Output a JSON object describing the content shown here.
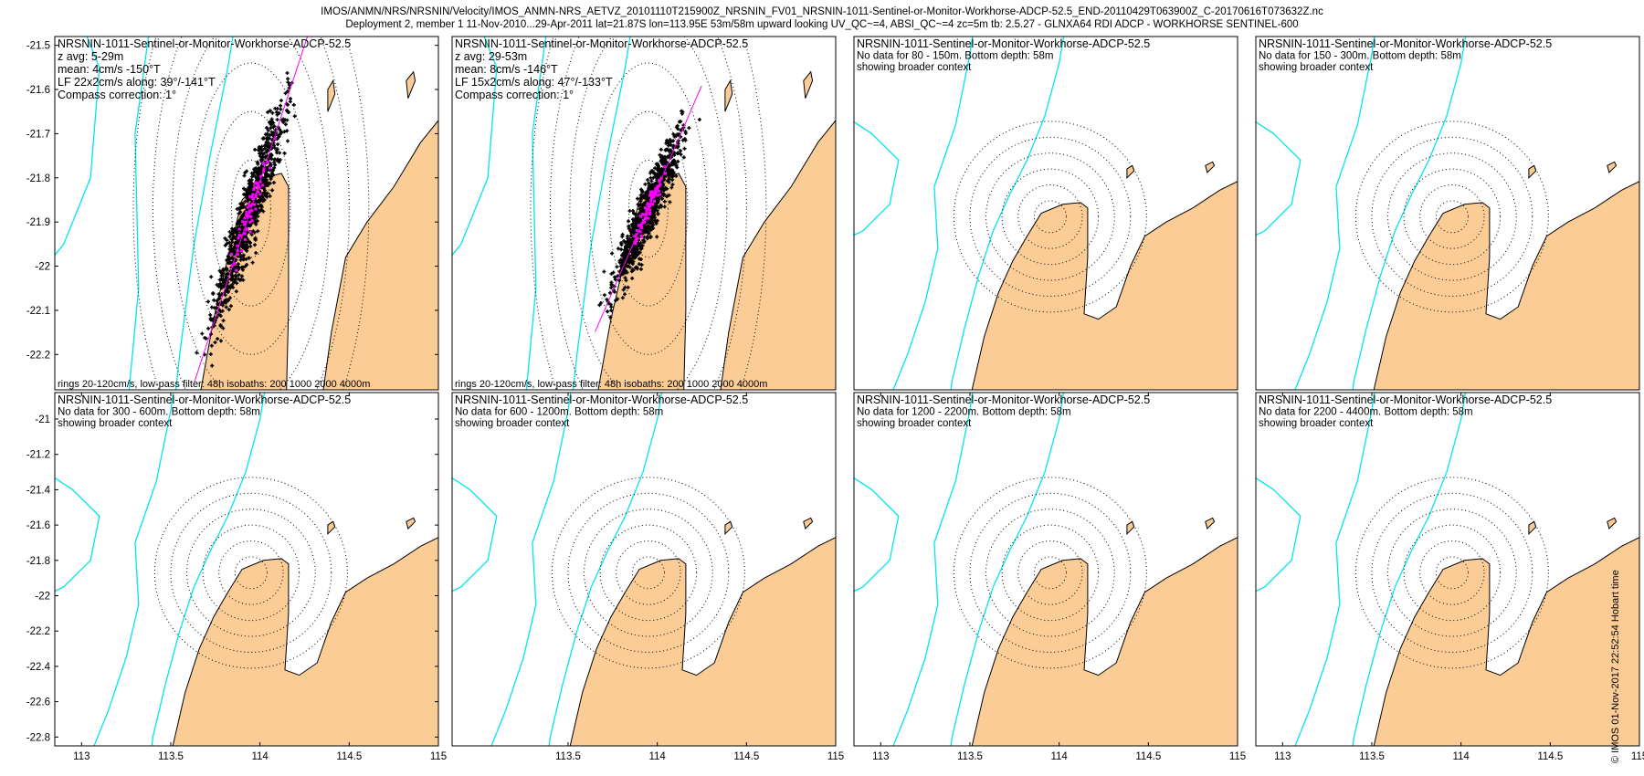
{
  "header": {
    "line1": "IMOS/ANMN/NRS/NRSNIN/Velocity/IMOS_ANMN-NRS_AETVZ_20101110T215900Z_NRSNIN_FV01_NRSNIN-1011-Sentinel-or-Monitor-Workhorse-ADCP-52.5_END-20110429T063900Z_C-20170616T073632Z.nc",
    "line2": "Deployment 2, member 1 11-Nov-2010...29-Apr-2011 lat=21.87S lon=113.95E 53m/58m upward looking UV_QC~=4, ABSI_QC~=4 zc=5m tb: 2.5.27 - GLNXA64 RDI ADCP - WORKHORSE SENTINEL-600"
  },
  "side_credit": "© IMOS 01-Nov-2017 22:52:54 Hobart time",
  "colors": {
    "land": "#fccc96",
    "isobath": "#00e5ee",
    "scatter": "#000000",
    "lowpass": "#ff00ff",
    "fitline": "#ff00ff"
  },
  "chart_data": [
    {
      "type": "scatter",
      "title": "NRSNIN-1011-Sentinel-or-Monitor-Workhorse-ADCP-52.5",
      "lines": [
        "z avg: 5-29m",
        "mean: 4cm/s -150°T",
        "LF 22x2cm/s along: 39°/-141°T",
        "Compass correction: 1°"
      ],
      "footer": "rings 20-120cm/s, low-pass filter: 48h isobaths: 200 1000 2000 4000m",
      "xlim": [
        112.85,
        115.0
      ],
      "ylim": [
        -22.28,
        -21.48
      ],
      "yticks": [
        -21.5,
        -21.6,
        -21.7,
        -21.8,
        -21.9,
        -22,
        -22.1,
        -22.2
      ],
      "xticks": [],
      "has_data": true,
      "mean_deg": -150,
      "along_deg": 39,
      "major_half": 0.42,
      "minor_half": 0.04
    },
    {
      "type": "scatter",
      "title": "NRSNIN-1011-Sentinel-or-Monitor-Workhorse-ADCP-52.5",
      "lines": [
        "z avg: 29-53m",
        "mean: 8cm/s -146°T",
        "LF 15x2cm/s along: 47°/-133°T",
        "Compass correction: 1°"
      ],
      "footer": "rings 20-120cm/s, low-pass filter: 48h isobaths: 200 1000 2000 4000m",
      "xlim": [
        112.85,
        115.0
      ],
      "ylim": [
        -22.28,
        -21.48
      ],
      "yticks": [],
      "xticks": [],
      "has_data": true,
      "mean_deg": -146,
      "along_deg": 47,
      "major_half": 0.34,
      "minor_half": 0.035
    },
    {
      "type": "scatter",
      "title": "NRSNIN-1011-Sentinel-or-Monitor-Workhorse-ADCP-52.5",
      "lines": [
        "No data for 80 - 150m. Bottom depth: 58m",
        "showing broader context"
      ],
      "footer": "",
      "xlim": [
        112.85,
        115.0
      ],
      "ylim": [
        -22.85,
        -20.85
      ],
      "yticks": [],
      "xticks": [],
      "has_data": false
    },
    {
      "type": "scatter",
      "title": "NRSNIN-1011-Sentinel-or-Monitor-Workhorse-ADCP-52.5",
      "lines": [
        "No data for 150 - 300m. Bottom depth: 58m",
        "showing broader context"
      ],
      "footer": "",
      "xlim": [
        112.85,
        115.0
      ],
      "ylim": [
        -22.85,
        -20.85
      ],
      "yticks": [],
      "xticks": [],
      "has_data": false
    },
    {
      "type": "scatter",
      "title": "NRSNIN-1011-Sentinel-or-Monitor-Workhorse-ADCP-52.5",
      "lines": [
        "No data for 300 - 600m. Bottom depth: 58m",
        "showing broader context"
      ],
      "footer": "",
      "xlim": [
        112.85,
        115.0
      ],
      "ylim": [
        -22.85,
        -20.85
      ],
      "yticks": [
        -21,
        -21.2,
        -21.4,
        -21.6,
        -21.8,
        -22,
        -22.2,
        -22.4,
        -22.6,
        -22.8
      ],
      "xticks": [
        113,
        113.5,
        114,
        114.5,
        115
      ],
      "has_data": false
    },
    {
      "type": "scatter",
      "title": "NRSNIN-1011-Sentinel-or-Monitor-Workhorse-ADCP-52.5",
      "lines": [
        "No data for 600 - 1200m. Bottom depth: 58m",
        "showing broader context"
      ],
      "footer": "",
      "xlim": [
        112.85,
        115.0
      ],
      "ylim": [
        -22.85,
        -20.85
      ],
      "yticks": [],
      "xticks": [
        113.5,
        114,
        114.5,
        115
      ],
      "has_data": false
    },
    {
      "type": "scatter",
      "title": "NRSNIN-1011-Sentinel-or-Monitor-Workhorse-ADCP-52.5",
      "lines": [
        "No data for 1200 - 2200m. Bottom depth: 58m",
        "showing broader context"
      ],
      "footer": "",
      "xlim": [
        112.85,
        115.0
      ],
      "ylim": [
        -22.85,
        -20.85
      ],
      "yticks": [],
      "xticks": [
        113,
        113.5,
        114,
        114.5,
        115
      ],
      "has_data": false
    },
    {
      "type": "scatter",
      "title": "NRSNIN-1011-Sentinel-or-Monitor-Workhorse-ADCP-52.5",
      "lines": [
        "No data for 2200 - 4400m. Bottom depth: 58m",
        "showing broader context"
      ],
      "footer": "",
      "xlim": [
        112.85,
        115.0
      ],
      "ylim": [
        -22.85,
        -20.85
      ],
      "yticks": [],
      "xticks": [
        113,
        113.5,
        114,
        114.5,
        115
      ],
      "has_data": false
    }
  ]
}
